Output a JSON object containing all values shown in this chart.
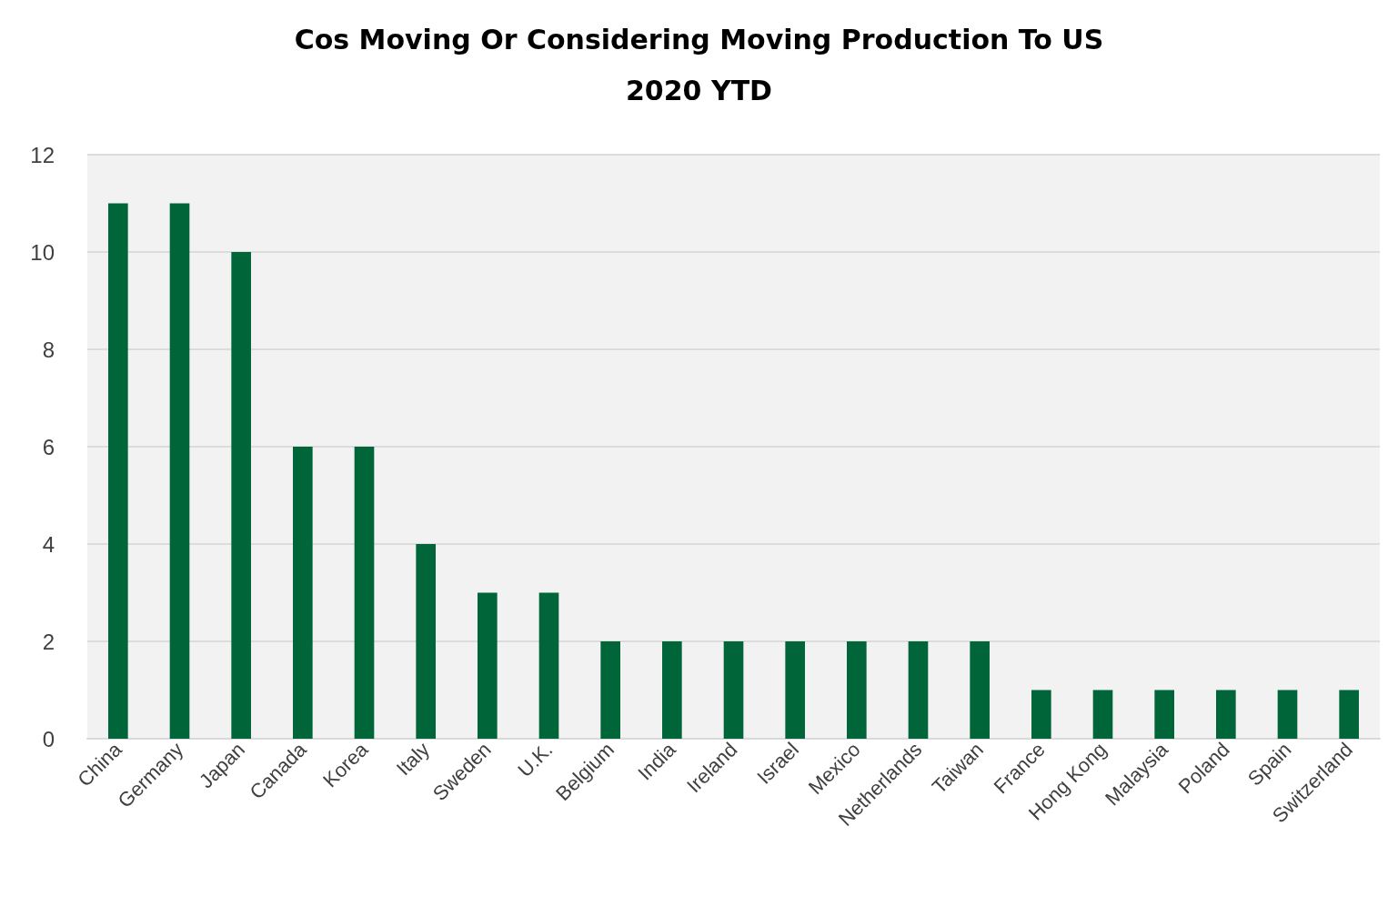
{
  "chart_data": {
    "type": "bar",
    "title": "Cos Moving Or Considering Moving Production To US\n2020 YTD",
    "categories": [
      "China",
      "Germany",
      "Japan",
      "Canada",
      "Korea",
      "Italy",
      "Sweden",
      "U.K.",
      "Belgium",
      "India",
      "Ireland",
      "Israel",
      "Mexico",
      "Netherlands",
      "Taiwan",
      "France",
      "Hong Kong",
      "Malaysia",
      "Poland",
      "Spain",
      "Switzerland"
    ],
    "values": [
      11,
      11,
      10,
      6,
      6,
      4,
      3,
      3,
      2,
      2,
      2,
      2,
      2,
      2,
      2,
      1,
      1,
      1,
      1,
      1,
      1
    ],
    "color": "#00663a",
    "ylim": [
      0,
      12
    ],
    "yticks": [
      0,
      2,
      4,
      6,
      8,
      10,
      12
    ],
    "grid": "y"
  }
}
